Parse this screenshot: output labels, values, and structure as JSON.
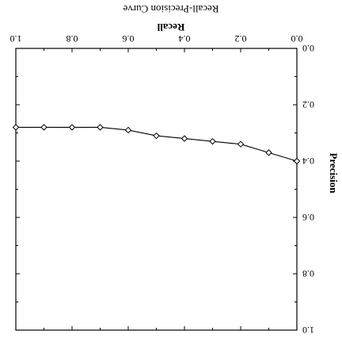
{
  "chart_data": {
    "type": "line",
    "title": "Recall-Precision Curve",
    "xlabel": "Recall",
    "ylabel": "Precision",
    "xlim": [
      0.0,
      1.0
    ],
    "ylim": [
      0.0,
      1.0
    ],
    "xticks": [
      "0.0",
      "0.2",
      "0.4",
      "0.6",
      "0.8",
      "1.0"
    ],
    "yticks": [
      "0.0",
      "0.2",
      "0.4",
      "0.6",
      "0.8",
      "1.0"
    ],
    "grid": false,
    "series": [
      {
        "marker": "diamond-open",
        "color": "#000000",
        "x": [
          0.0,
          0.1,
          0.2,
          0.3,
          0.4,
          0.5,
          0.6,
          0.7,
          0.8,
          0.9,
          1.0
        ],
        "y": [
          0.4,
          0.37,
          0.34,
          0.33,
          0.32,
          0.31,
          0.29,
          0.28,
          0.28,
          0.28,
          0.28
        ]
      }
    ]
  }
}
